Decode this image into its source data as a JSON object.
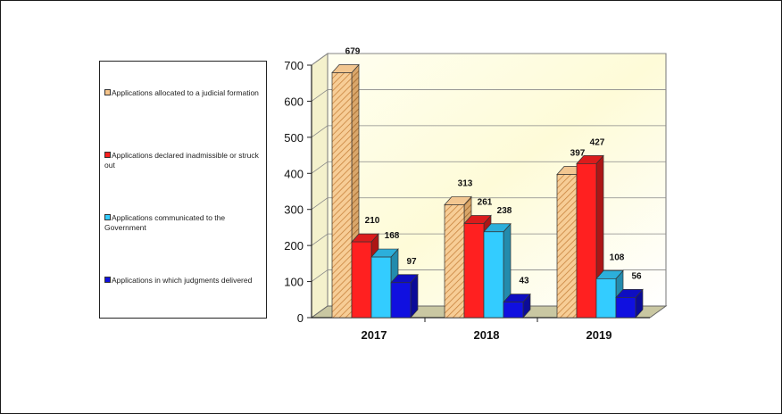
{
  "chart_data": {
    "type": "bar",
    "categories": [
      "2017",
      "2018",
      "2019"
    ],
    "series": [
      {
        "name": "Applications allocated  to a judicial formation",
        "values": [
          679,
          313,
          397
        ],
        "color": "#F5C48A",
        "pattern": "hatched"
      },
      {
        "name": "Applications declared inadmissible or struck out",
        "values": [
          210,
          261,
          427
        ],
        "color": "#FF2020"
      },
      {
        "name": "Applications communicated to the Government",
        "values": [
          168,
          238,
          108
        ],
        "color": "#33CCFF"
      },
      {
        "name": "Applications in which judgments delivered",
        "values": [
          97,
          43,
          56
        ],
        "color": "#1010E0"
      }
    ],
    "y_ticks": [
      "0",
      "100",
      "200",
      "300",
      "400",
      "500",
      "600",
      "700"
    ],
    "ylim": [
      0,
      700
    ],
    "grid": true,
    "legend_position": "left",
    "style": "3d-clustered-column",
    "title": "",
    "xlabel": "",
    "ylabel": ""
  }
}
